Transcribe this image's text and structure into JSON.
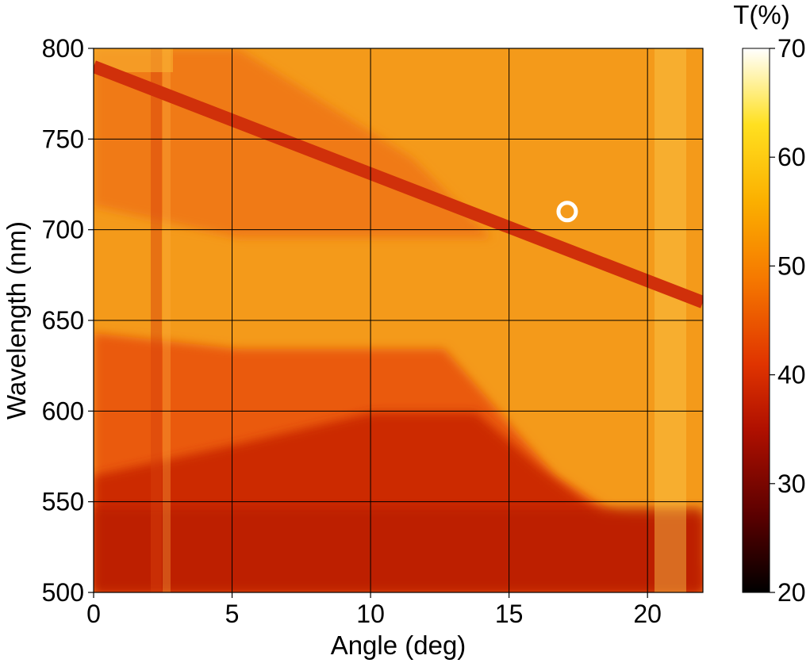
{
  "chart_data": {
    "type": "heatmap",
    "xlabel": "Angle (deg)",
    "ylabel": "Wavelength (nm)",
    "xlim": [
      0,
      22
    ],
    "ylim": [
      500,
      800
    ],
    "x_ticks": [
      0,
      5,
      10,
      15,
      20
    ],
    "y_ticks": [
      500,
      550,
      600,
      650,
      700,
      750,
      800
    ],
    "grid": true,
    "colorbar": {
      "label": "T(%)",
      "range": [
        20,
        70
      ],
      "ticks": [
        20,
        30,
        40,
        50,
        60,
        70
      ],
      "colormap": "hot",
      "colors": [
        "#000000",
        "#5a0000",
        "#b01000",
        "#e03400",
        "#f67a00",
        "#fbb000",
        "#ffe020",
        "#ffffff"
      ]
    },
    "features": {
      "background_T": 56,
      "low_band_T": 38,
      "mid_band_T": 46,
      "dip_T": 42,
      "dip_line": [
        {
          "angle": 0,
          "wavelength": 790
        },
        {
          "angle": 22,
          "wavelength": 660
        }
      ]
    },
    "marker": {
      "angle": 17.1,
      "wavelength": 710,
      "style": "open-circle",
      "color": "#ffffff"
    }
  }
}
